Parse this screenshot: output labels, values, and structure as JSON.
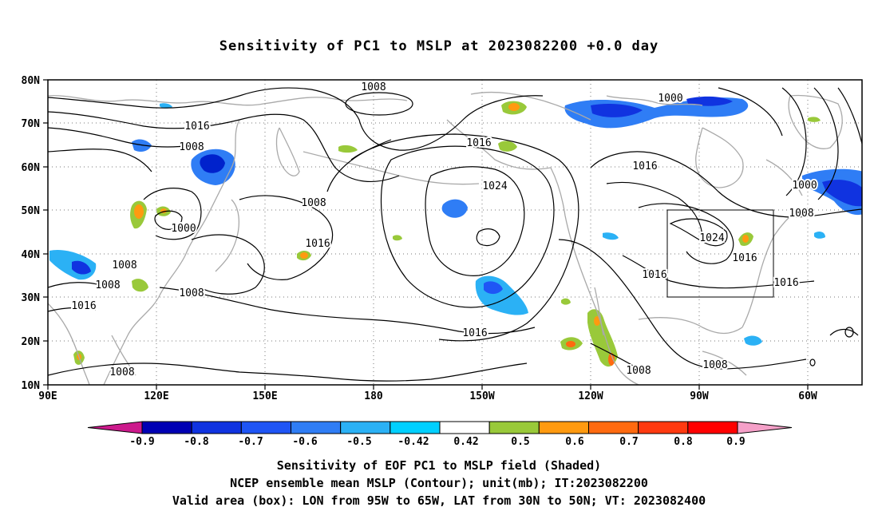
{
  "title": "Sensitivity of PC1 to MSLP at 2023082200 +0.0 day",
  "map": {
    "lat_labels": [
      "80N",
      "70N",
      "60N",
      "50N",
      "40N",
      "30N",
      "20N",
      "10N"
    ],
    "lon_labels": [
      "90E",
      "120E",
      "150E",
      "180",
      "150W",
      "120W",
      "90W",
      "60W"
    ],
    "contour_labels": [
      "1008",
      "1016",
      "1008",
      "1000",
      "1008",
      "1008",
      "1008",
      "1016",
      "1008",
      "1016",
      "1024",
      "1016",
      "1016",
      "1000",
      "1016",
      "1000",
      "1008",
      "1024",
      "1016",
      "1016",
      "1016",
      "1008",
      "1008",
      "1008"
    ],
    "contour_interval_mb": 8,
    "valid_box": {
      "lon_from": "95W",
      "lon_to": "65W",
      "lat_from": "30N",
      "lat_to": "50N"
    },
    "colors": {
      "neg": "#1e6cff",
      "neg_dark": "#0022cc",
      "pos_green": "#99c93a",
      "pos_orange": "#ff9a10",
      "coast": "#a9a9a9",
      "contour": "#000000"
    }
  },
  "colorbar": {
    "labels": [
      "-0.9",
      "-0.8",
      "-0.7",
      "-0.6",
      "-0.5",
      "-0.42",
      "0.42",
      "0.5",
      "0.6",
      "0.7",
      "0.8",
      "0.9"
    ],
    "colors": [
      "#cc1a8c",
      "#0000b3",
      "#1033e0",
      "#1f55f5",
      "#2f7df5",
      "#2bb1f5",
      "#00d0ff",
      "#ffffff",
      "#99c93a",
      "#ff9a10",
      "#ff6a10",
      "#ff3a10",
      "#ff0000",
      "#f5a0c8"
    ]
  },
  "captions": {
    "line1": "Sensitivity of EOF PC1 to MSLP field (Shaded)",
    "line2": "NCEP ensemble mean MSLP (Contour); unit(mb); IT:2023082200",
    "line3": "Valid area (box): LON from 95W to 65W, LAT from 30N to 50N; VT: 2023082400"
  }
}
